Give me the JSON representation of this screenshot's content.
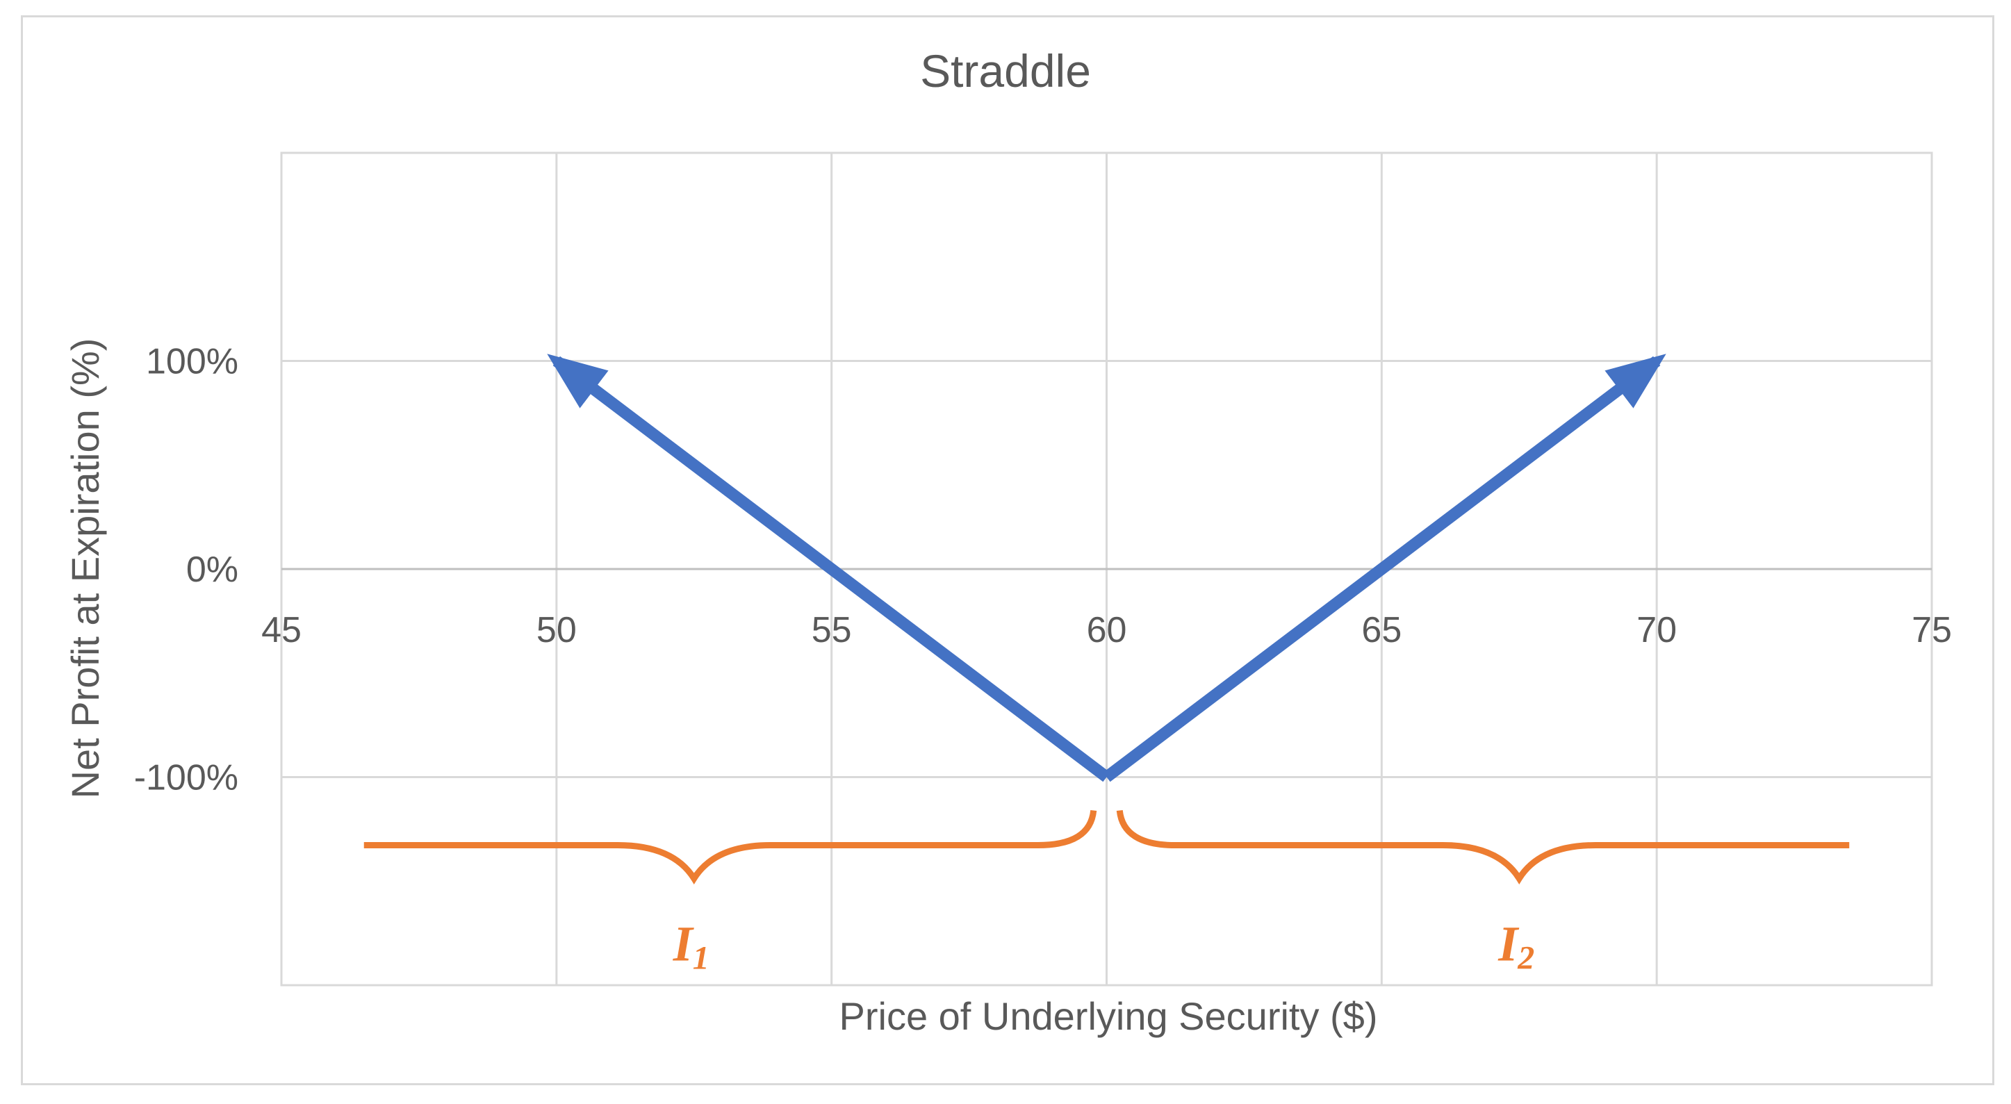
{
  "chart_data": {
    "type": "line",
    "title": "Straddle",
    "xlabel": "Price of Underlying Security ($)",
    "ylabel": "Net Profit at Expiration (%)",
    "xlim": [
      45,
      75
    ],
    "ylim": [
      -200,
      200
    ],
    "x_ticks": [
      45,
      50,
      55,
      60,
      65,
      70,
      75
    ],
    "x_tick_labels": [
      "45",
      "50",
      "55",
      "60",
      "65",
      "70",
      "75"
    ],
    "y_ticks": [
      100,
      0,
      -100
    ],
    "y_tick_labels": [
      "100%",
      "0%",
      "-100%"
    ],
    "grid": true,
    "series": [
      {
        "x": [
          60,
          50
        ],
        "y": [
          -100,
          100
        ],
        "color": "#4472c4",
        "arrow_end": true
      },
      {
        "x": [
          60,
          70
        ],
        "y": [
          -100,
          100
        ],
        "color": "#4472c4",
        "arrow_end": true
      }
    ],
    "annotations": [
      {
        "type": "brace",
        "x_from": 46.5,
        "x_to": 59.7,
        "x_point": 52.5,
        "label": "I",
        "label_subscript": "1",
        "color": "#ed7d31"
      },
      {
        "type": "brace",
        "x_from": 60.3,
        "x_to": 73.5,
        "x_point": 67.5,
        "label": "I",
        "label_subscript": "2",
        "color": "#ed7d31"
      }
    ]
  }
}
